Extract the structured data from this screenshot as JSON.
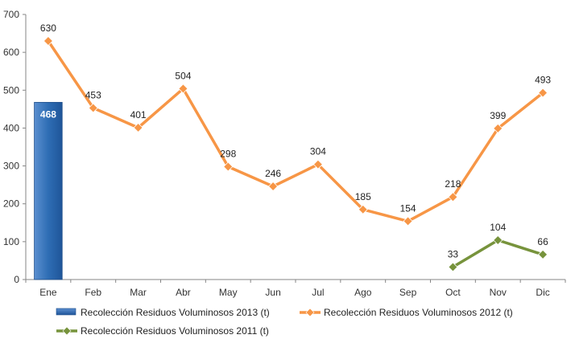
{
  "chart_data": {
    "type": "bar+line",
    "categories": [
      "Ene",
      "Feb",
      "Mar",
      "Abr",
      "May",
      "Jun",
      "Jul",
      "Ago",
      "Sep",
      "Oct",
      "Nov",
      "Dic"
    ],
    "ylim": [
      0,
      700
    ],
    "yticks": [
      0,
      100,
      200,
      300,
      400,
      500,
      600,
      700
    ],
    "grid": false,
    "legend_position": "bottom",
    "series": [
      {
        "name": "Recolección Residuos Voluminosos 2013 (t)",
        "type": "bar",
        "color": "#2e6db4",
        "values": [
          468,
          null,
          null,
          null,
          null,
          null,
          null,
          null,
          null,
          null,
          null,
          null
        ]
      },
      {
        "name": "Recolección Residuos Voluminosos 2012 (t)",
        "type": "line",
        "color": "#f79646",
        "values": [
          630,
          453,
          401,
          504,
          298,
          246,
          304,
          185,
          154,
          218,
          399,
          493
        ]
      },
      {
        "name": "Recolección Residuos Voluminosos 2011 (t)",
        "type": "line",
        "color": "#77933c",
        "values": [
          null,
          null,
          null,
          null,
          null,
          null,
          null,
          null,
          null,
          33,
          104,
          66
        ]
      }
    ]
  }
}
